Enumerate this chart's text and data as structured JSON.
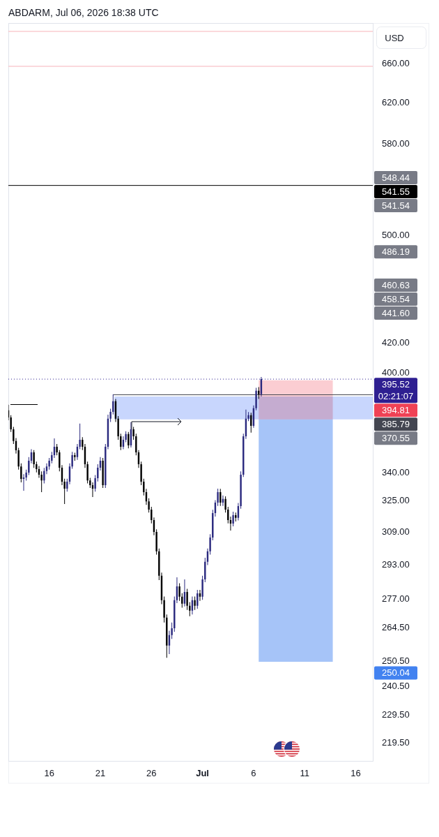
{
  "chart_data": {
    "type": "candlestick",
    "title": "ABDARM, Jul 06, 2026 18:38 UTC",
    "ylabel": "USD",
    "log": true,
    "xlim": [
      "2026-06-12T00:00",
      "2026-07-17T16:00"
    ],
    "xticks": [
      {
        "value": "2026-06-16",
        "label": "16"
      },
      {
        "value": "2026-06-21",
        "label": "21"
      },
      {
        "value": "2026-06-26",
        "label": "26"
      },
      {
        "value": "2026-07-01",
        "label": "Jul"
      },
      {
        "value": "2026-07-06",
        "label": "6"
      },
      {
        "value": "2026-07-11",
        "label": "11"
      },
      {
        "value": "2026-07-16",
        "label": "16"
      }
    ],
    "ylim": [
      212.9,
      704.8
    ],
    "yticks": [
      {
        "value": 660,
        "label": "660.00"
      },
      {
        "value": 620,
        "label": "620.00"
      },
      {
        "value": 580,
        "label": "580.00"
      },
      {
        "value": 500,
        "label": "500.00"
      },
      {
        "value": 420,
        "label": "420.00"
      },
      {
        "value": 400,
        "label": "400.00"
      },
      {
        "value": 340,
        "label": "340.00"
      },
      {
        "value": 325,
        "label": "325.00"
      },
      {
        "value": 309,
        "label": "309.00"
      },
      {
        "value": 293,
        "label": "293.00"
      },
      {
        "value": 277,
        "label": "277.00"
      },
      {
        "value": 264.5,
        "label": "264.50"
      },
      {
        "value": 250.5,
        "label": "250.50"
      },
      {
        "value": 240.5,
        "label": "240.50"
      },
      {
        "value": 229.5,
        "label": "229.50"
      },
      {
        "value": 219.5,
        "label": "219.50"
      }
    ],
    "x": [
      "2026-06-12T00:00",
      "2026-06-12T06:00",
      "2026-06-12T12:00",
      "2026-06-12T18:00",
      "2026-06-13T00:00",
      "2026-06-13T06:00",
      "2026-06-13T12:00",
      "2026-06-13T18:00",
      "2026-06-14T00:00",
      "2026-06-14T06:00",
      "2026-06-14T12:00",
      "2026-06-14T18:00",
      "2026-06-15T00:00",
      "2026-06-15T06:00",
      "2026-06-15T12:00",
      "2026-06-15T18:00",
      "2026-06-16T00:00",
      "2026-06-16T06:00",
      "2026-06-16T12:00",
      "2026-06-16T18:00",
      "2026-06-17T00:00",
      "2026-06-17T06:00",
      "2026-06-17T12:00",
      "2026-06-17T18:00",
      "2026-06-18T00:00",
      "2026-06-18T06:00",
      "2026-06-18T12:00",
      "2026-06-18T18:00",
      "2026-06-19T00:00",
      "2026-06-19T06:00",
      "2026-06-19T12:00",
      "2026-06-19T18:00",
      "2026-06-20T00:00",
      "2026-06-20T06:00",
      "2026-06-20T12:00",
      "2026-06-20T18:00",
      "2026-06-21T00:00",
      "2026-06-21T06:00",
      "2026-06-21T12:00",
      "2026-06-21T18:00",
      "2026-06-22T00:00",
      "2026-06-22T06:00",
      "2026-06-22T12:00",
      "2026-06-22T18:00",
      "2026-06-23T00:00",
      "2026-06-23T06:00",
      "2026-06-23T12:00",
      "2026-06-23T18:00",
      "2026-06-24T00:00",
      "2026-06-24T06:00",
      "2026-06-24T12:00",
      "2026-06-24T18:00",
      "2026-06-25T00:00",
      "2026-06-25T06:00",
      "2026-06-25T12:00",
      "2026-06-25T18:00",
      "2026-06-26T00:00",
      "2026-06-26T06:00",
      "2026-06-26T12:00",
      "2026-06-26T18:00",
      "2026-06-27T00:00",
      "2026-06-27T06:00",
      "2026-06-27T12:00",
      "2026-06-27T18:00",
      "2026-06-28T00:00",
      "2026-06-28T06:00",
      "2026-06-28T12:00",
      "2026-06-28T18:00",
      "2026-06-29T00:00",
      "2026-06-29T06:00",
      "2026-06-29T12:00",
      "2026-06-29T18:00",
      "2026-06-30T00:00",
      "2026-06-30T06:00",
      "2026-06-30T12:00",
      "2026-06-30T18:00",
      "2026-07-01T00:00",
      "2026-07-01T06:00",
      "2026-07-01T12:00",
      "2026-07-01T18:00",
      "2026-07-02T00:00",
      "2026-07-02T06:00",
      "2026-07-02T12:00",
      "2026-07-02T18:00",
      "2026-07-03T00:00",
      "2026-07-03T06:00",
      "2026-07-03T12:00",
      "2026-07-03T18:00",
      "2026-07-04T00:00",
      "2026-07-04T06:00",
      "2026-07-04T12:00",
      "2026-07-04T18:00",
      "2026-07-05T00:00",
      "2026-07-05T06:00",
      "2026-07-05T12:00",
      "2026-07-05T18:00",
      "2026-07-06T00:00",
      "2026-07-06T06:00",
      "2026-07-06T12:00",
      "2026-07-06T18:00"
    ],
    "ohlc": [
      [
        376.0,
        379.4,
        370.0,
        371.7
      ],
      [
        371.7,
        373.0,
        363.0,
        364.6
      ],
      [
        364.6,
        366.0,
        356.0,
        357.7
      ],
      [
        357.7,
        359.5,
        350.5,
        352.4
      ],
      [
        352.4,
        353.8,
        341.5,
        343.3
      ],
      [
        343.3,
        345.0,
        334.5,
        336.4
      ],
      [
        336.4,
        339.0,
        330.0,
        337.2
      ],
      [
        337.2,
        341.5,
        335.5,
        339.9
      ],
      [
        339.9,
        348.5,
        338.5,
        346.5
      ],
      [
        346.5,
        353.0,
        345.0,
        351.2
      ],
      [
        351.2,
        352.5,
        342.5,
        344.5
      ],
      [
        344.5,
        346.0,
        340.0,
        341.8
      ],
      [
        341.8,
        343.5,
        337.0,
        338.7
      ],
      [
        338.7,
        340.5,
        329.3,
        335.6
      ],
      [
        335.6,
        342.5,
        334.0,
        340.7
      ],
      [
        340.7,
        345.0,
        339.0,
        343.3
      ],
      [
        343.3,
        348.0,
        341.5,
        346.5
      ],
      [
        346.5,
        351.5,
        345.0,
        349.6
      ],
      [
        349.6,
        359.3,
        348.0,
        354.4
      ],
      [
        354.4,
        356.0,
        349.5,
        351.2
      ],
      [
        351.2,
        352.5,
        340.5,
        342.6
      ],
      [
        342.6,
        344.0,
        333.0,
        334.9
      ],
      [
        334.9,
        336.5,
        323.0,
        331.1
      ],
      [
        331.1,
        336.5,
        329.5,
        334.9
      ],
      [
        334.9,
        345.0,
        333.5,
        343.3
      ],
      [
        343.3,
        351.5,
        342.0,
        349.6
      ],
      [
        349.6,
        351.0,
        346.5,
        348.5
      ],
      [
        348.5,
        356.0,
        347.0,
        354.4
      ],
      [
        354.4,
        368.0,
        353.0,
        358.5
      ],
      [
        358.5,
        360.0,
        352.5,
        354.4
      ],
      [
        354.4,
        356.0,
        342.5,
        344.5
      ],
      [
        344.5,
        346.0,
        334.0,
        335.6
      ],
      [
        335.6,
        337.0,
        331.5,
        333.0
      ],
      [
        333.0,
        334.5,
        326.7,
        331.1
      ],
      [
        331.1,
        338.5,
        329.5,
        336.8
      ],
      [
        336.8,
        344.5,
        335.0,
        342.6
      ],
      [
        342.6,
        348.5,
        341.0,
        346.5
      ],
      [
        346.5,
        348.0,
        331.5,
        333.0
      ],
      [
        333.0,
        356.0,
        331.5,
        354.4
      ],
      [
        354.4,
        373.4,
        353.0,
        370.9
      ],
      [
        370.9,
        377.0,
        369.0,
        375.1
      ],
      [
        375.1,
        385.79,
        373.5,
        381.6
      ],
      [
        381.6,
        383.0,
        369.0,
        370.9
      ],
      [
        370.9,
        372.5,
        358.5,
        360.5
      ],
      [
        360.5,
        362.0,
        352.5,
        354.4
      ],
      [
        354.4,
        360.5,
        353.0,
        358.5
      ],
      [
        358.5,
        363.5,
        357.0,
        361.8
      ],
      [
        361.8,
        363.0,
        353.5,
        355.2
      ],
      [
        355.2,
        368.8,
        354.0,
        364.6
      ],
      [
        364.6,
        366.0,
        358.5,
        360.5
      ],
      [
        360.5,
        362.0,
        349.5,
        351.2
      ],
      [
        351.2,
        352.5,
        342.5,
        344.5
      ],
      [
        344.5,
        346.0,
        333.0,
        334.9
      ],
      [
        334.9,
        336.5,
        327.5,
        329.3
      ],
      [
        329.3,
        331.0,
        322.5,
        324.4
      ],
      [
        324.4,
        326.0,
        318.5,
        320.1
      ],
      [
        320.1,
        321.5,
        313.0,
        314.7
      ],
      [
        314.7,
        316.0,
        307.0,
        308.7
      ],
      [
        308.7,
        310.0,
        297.5,
        299.1
      ],
      [
        299.1,
        300.5,
        285.5,
        287.5
      ],
      [
        287.5,
        289.0,
        274.5,
        276.3
      ],
      [
        276.3,
        278.0,
        266.5,
        268.6
      ],
      [
        268.6,
        270.0,
        251.7,
        256.7
      ],
      [
        256.7,
        263.0,
        253.2,
        261.1
      ],
      [
        261.1,
        266.5,
        259.5,
        264.0
      ],
      [
        264.0,
        278.0,
        262.5,
        276.3
      ],
      [
        276.3,
        286.8,
        275.0,
        282.6
      ],
      [
        282.6,
        284.0,
        276.0,
        277.9
      ],
      [
        277.9,
        279.5,
        273.0,
        274.8
      ],
      [
        274.8,
        285.8,
        273.5,
        280.0
      ],
      [
        280.0,
        281.5,
        272.0,
        273.8
      ],
      [
        273.8,
        275.5,
        269.2,
        271.7
      ],
      [
        271.7,
        278.0,
        270.0,
        276.3
      ],
      [
        276.3,
        278.0,
        272.0,
        273.8
      ],
      [
        273.8,
        281.0,
        272.5,
        279.4
      ],
      [
        279.4,
        281.0,
        276.0,
        277.9
      ],
      [
        277.9,
        287.5,
        276.5,
        285.8
      ],
      [
        285.8,
        296.0,
        284.5,
        294.1
      ],
      [
        294.1,
        300.5,
        292.5,
        299.1
      ],
      [
        299.1,
        307.5,
        297.5,
        305.9
      ],
      [
        305.9,
        320.0,
        304.5,
        318.3
      ],
      [
        318.3,
        325.0,
        316.5,
        323.7
      ],
      [
        323.7,
        331.1,
        322.0,
        329.3
      ],
      [
        329.3,
        331.0,
        322.0,
        323.7
      ],
      [
        323.7,
        327.5,
        322.0,
        325.6
      ],
      [
        325.6,
        327.0,
        318.5,
        320.1
      ],
      [
        320.1,
        321.5,
        313.0,
        314.7
      ],
      [
        314.7,
        316.5,
        309.4,
        312.9
      ],
      [
        312.9,
        319.0,
        311.5,
        317.2
      ],
      [
        317.2,
        318.5,
        314.0,
        315.8
      ],
      [
        315.8,
        323.5,
        314.5,
        321.9
      ],
      [
        321.9,
        340.5,
        320.5,
        338.7
      ],
      [
        338.7,
        362.0,
        337.5,
        360.5
      ],
      [
        360.5,
        376.4,
        359.0,
        370.9
      ],
      [
        370.9,
        375.0,
        369.5,
        373.0
      ],
      [
        373.0,
        374.5,
        362.6,
        366.7
      ],
      [
        366.7,
        379.0,
        365.5,
        377.3
      ],
      [
        377.3,
        390.0,
        376.0,
        388.1
      ],
      [
        388.1,
        390.5,
        383.0,
        385.9
      ],
      [
        385.9,
        396.9,
        384.5,
        395.52
      ]
    ],
    "colors": [
      "#000000",
      "#000000",
      "#000000",
      "#000000",
      "#000000",
      "#000000",
      "#29287e",
      "#29287e",
      "#29287e",
      "#29287e",
      "#000000",
      "#000000",
      "#000000",
      "#000000",
      "#29287e",
      "#29287e",
      "#29287e",
      "#29287e",
      "#29287e",
      "#000000",
      "#000000",
      "#000000",
      "#000000",
      "#29287e",
      "#29287e",
      "#29287e",
      "#000000",
      "#29287e",
      "#29287e",
      "#000000",
      "#000000",
      "#000000",
      "#000000",
      "#000000",
      "#29287e",
      "#29287e",
      "#29287e",
      "#000000",
      "#29287e",
      "#29287e",
      "#29287e",
      "#29287e",
      "#000000",
      "#000000",
      "#000000",
      "#29287e",
      "#29287e",
      "#000000",
      "#29287e",
      "#000000",
      "#000000",
      "#000000",
      "#000000",
      "#000000",
      "#000000",
      "#000000",
      "#000000",
      "#000000",
      "#000000",
      "#000000",
      "#000000",
      "#000000",
      "#000000",
      "#29287e",
      "#29287e",
      "#29287e",
      "#29287e",
      "#000000",
      "#000000",
      "#29287e",
      "#000000",
      "#000000",
      "#29287e",
      "#000000",
      "#29287e",
      "#000000",
      "#29287e",
      "#29287e",
      "#29287e",
      "#29287e",
      "#29287e",
      "#29287e",
      "#29287e",
      "#000000",
      "#29287e",
      "#000000",
      "#000000",
      "#000000",
      "#29287e",
      "#000000",
      "#29287e",
      "#29287e",
      "#29287e",
      "#29287e",
      "#29287e",
      "#000000",
      "#29287e",
      "#29287e",
      "#000000",
      "#29287e"
    ],
    "series": [
      {
        "type": "line",
        "x": [
          "2026-06-22T09:00",
          "2026-07-17T16:00"
        ],
        "values": [
          null,
          null
        ],
        "lower": [
          370.55,
          370.55
        ],
        "upper": [
          384.5,
          384.5
        ],
        "color": "#c8d6fd"
      },
      {
        "type": "line",
        "x": [
          "2026-07-06T12:00",
          "2026-07-13T18:00"
        ],
        "values": [
          null,
          null
        ],
        "lower": [
          370.55,
          370.55
        ],
        "upper": [
          394.81,
          394.81
        ],
        "color": "#fbcdd2"
      },
      {
        "type": "line",
        "x": [
          "2026-07-06T12:00",
          "2026-07-13T18:00"
        ],
        "values": [
          null,
          null
        ],
        "lower": [
          250.04,
          250.04
        ],
        "upper": [
          370.55,
          370.55
        ],
        "color": "#a6c4f8"
      },
      {
        "type": "line",
        "x": [
          "2026-06-12T05:00",
          "2026-06-14T21:00"
        ],
        "values": [
          379.4,
          379.4
        ],
        "color": "#000000"
      },
      {
        "type": "line",
        "x": [
          "2026-06-22T06:00",
          "2026-07-17T16:00"
        ],
        "values": [
          385.79,
          385.79
        ],
        "color": "#434651"
      }
    ],
    "ref_lines": [
      {
        "axis": "y",
        "value": 695.3,
        "color": "#f7b3ba"
      },
      {
        "axis": "y",
        "value": 657.0,
        "color": "#f7b3ba"
      },
      {
        "axis": "y",
        "value": 541.55,
        "label": "541.55",
        "color": "#000000"
      },
      {
        "axis": "y",
        "value": 395.52,
        "label": "395.52",
        "color": "#2e1f91",
        "line_style": "dotted"
      }
    ],
    "annotations": [
      "548.44",
      "541.54",
      "486.19",
      "460.63",
      "458.54",
      "441.60",
      "394.81",
      "385.79",
      "370.55",
      "250.04",
      "02:21:07"
    ]
  }
}
